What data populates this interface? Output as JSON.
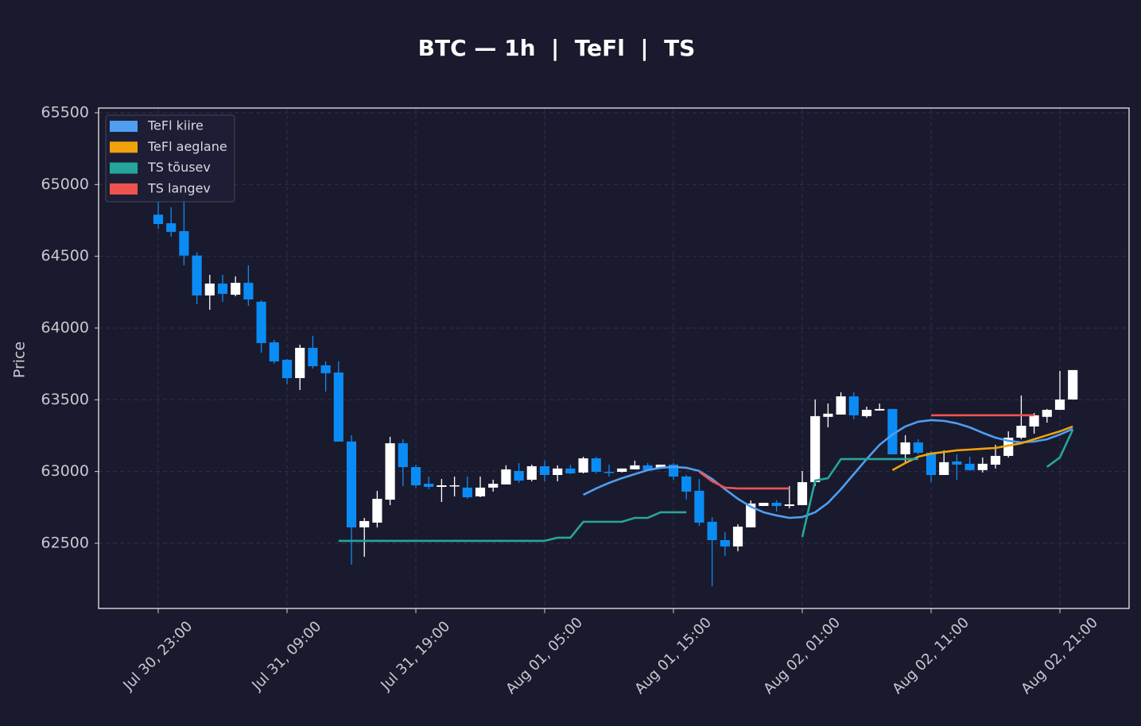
{
  "chart_data": {
    "type": "candlestick",
    "title": "BTC — 1h  |  TeFl  |  TS",
    "y_label": "Price",
    "categories": [
      "Jul 30, 23:00",
      null,
      null,
      null,
      null,
      null,
      null,
      null,
      null,
      null,
      "Jul 31, 09:00",
      null,
      null,
      null,
      null,
      null,
      null,
      null,
      null,
      null,
      "Jul 31, 19:00",
      null,
      null,
      null,
      null,
      null,
      null,
      null,
      null,
      null,
      "Aug 01, 05:00",
      null,
      null,
      null,
      null,
      null,
      null,
      null,
      null,
      null,
      "Aug 01, 15:00",
      null,
      null,
      null,
      null,
      null,
      null,
      null,
      null,
      null,
      "Aug 02, 01:00",
      null,
      null,
      null,
      null,
      null,
      null,
      null,
      null,
      null,
      "Aug 02, 11:00",
      null,
      null,
      null,
      null,
      null,
      null,
      null,
      null,
      null,
      "Aug 02, 21:00",
      null
    ],
    "open": [
      64790,
      64730,
      64675,
      64505,
      64227,
      64310,
      64232,
      64315,
      64183,
      63900,
      63779,
      63651,
      63862,
      63740,
      63690,
      63209,
      62611,
      62644,
      62804,
      63197,
      63031,
      62915,
      62893,
      62898,
      62888,
      62827,
      62888,
      62910,
      63004,
      62943,
      63037,
      62976,
      63021,
      62993,
      63092,
      62998,
      62998,
      63015,
      63043,
      63026,
      63048,
      62965,
      62866,
      62650,
      62522,
      62478,
      62611,
      62760,
      62782,
      62760,
      62766,
      62926,
      63381,
      63397,
      63524,
      63386,
      63425,
      63436,
      63120,
      63203,
      63131,
      62976,
      63070,
      63054,
      63010,
      63048,
      63109,
      63236,
      63314,
      63381,
      63430,
      63502
    ],
    "high": [
      64900,
      64841,
      64950,
      64526,
      64371,
      64371,
      64360,
      64437,
      64194,
      63917,
      63784,
      63884,
      63945,
      63768,
      63768,
      63253,
      62677,
      62865,
      63242,
      63225,
      63048,
      62965,
      62948,
      62965,
      62965,
      62965,
      62943,
      63043,
      63059,
      63048,
      63076,
      63043,
      63048,
      63103,
      63103,
      63048,
      63021,
      63076,
      63059,
      63048,
      63059,
      62976,
      62948,
      62683,
      62578,
      62633,
      62799,
      62782,
      62799,
      62899,
      63004,
      63502,
      63474,
      63552,
      63552,
      63452,
      63474,
      63436,
      63253,
      63225,
      63142,
      63148,
      63120,
      63103,
      63098,
      63186,
      63280,
      63530,
      63408,
      63436,
      63701,
      63707
    ],
    "low": [
      64692,
      64637,
      64437,
      64166,
      64127,
      64183,
      64221,
      64155,
      63828,
      63751,
      63607,
      63568,
      63718,
      63557,
      63209,
      62351,
      62406,
      62611,
      62766,
      62899,
      62888,
      62877,
      62788,
      62827,
      62810,
      62821,
      62860,
      62910,
      62921,
      62932,
      62932,
      62932,
      62982,
      62987,
      62987,
      62965,
      62993,
      63015,
      63004,
      63021,
      62943,
      62804,
      62622,
      62201,
      62412,
      62445,
      62611,
      62760,
      62722,
      62744,
      62766,
      62899,
      63308,
      63397,
      63364,
      63375,
      63425,
      63120,
      63059,
      63120,
      62926,
      62976,
      62943,
      63004,
      62993,
      63021,
      63098,
      63225,
      63264,
      63341,
      63430,
      63502
    ],
    "close": [
      64725,
      64670,
      64505,
      64227,
      64310,
      64238,
      64315,
      64199,
      63895,
      63767,
      63651,
      63862,
      63734,
      63685,
      63209,
      62611,
      62655,
      62810,
      63197,
      63031,
      62904,
      62893,
      62904,
      62904,
      62821,
      62888,
      62915,
      63015,
      62937,
      63037,
      62976,
      63021,
      62987,
      63092,
      62998,
      62993,
      63021,
      63043,
      63010,
      63048,
      62965,
      62860,
      62644,
      62522,
      62478,
      62616,
      62777,
      62782,
      62760,
      62771,
      62926,
      63386,
      63403,
      63524,
      63392,
      63430,
      63436,
      63120,
      63203,
      63131,
      62976,
      63065,
      63048,
      63010,
      63054,
      63109,
      63236,
      63319,
      63392,
      63430,
      63502,
      63707
    ],
    "up_color": "#ffffff",
    "down_color": "#0b8cf5",
    "series": [
      {
        "name": "TeFl kiire",
        "color": "#4f9ef0",
        "values": [
          null,
          null,
          null,
          null,
          null,
          null,
          null,
          null,
          null,
          null,
          null,
          null,
          null,
          null,
          null,
          null,
          null,
          null,
          null,
          null,
          null,
          null,
          null,
          null,
          null,
          null,
          null,
          null,
          null,
          null,
          null,
          null,
          null,
          62838,
          62882,
          62921,
          62954,
          62982,
          63010,
          63026,
          63032,
          63026,
          63004,
          62948,
          62877,
          62810,
          62755,
          62716,
          62694,
          62677,
          62683,
          62716,
          62782,
          62877,
          62982,
          63087,
          63186,
          63258,
          63314,
          63347,
          63358,
          63353,
          63336,
          63308,
          63270,
          63236,
          63214,
          63203,
          63209,
          63225,
          63258,
          63297
        ]
      },
      {
        "name": "TeFl aeglane",
        "color": "#f0a30a",
        "values": [
          null,
          null,
          null,
          null,
          null,
          null,
          null,
          null,
          null,
          null,
          null,
          null,
          null,
          null,
          null,
          null,
          null,
          null,
          null,
          null,
          null,
          null,
          null,
          null,
          null,
          null,
          null,
          null,
          null,
          null,
          null,
          null,
          null,
          null,
          null,
          null,
          null,
          null,
          null,
          null,
          null,
          null,
          null,
          null,
          null,
          null,
          null,
          null,
          null,
          null,
          null,
          null,
          null,
          null,
          null,
          null,
          null,
          63010,
          63059,
          63103,
          63125,
          63136,
          63148,
          63153,
          63159,
          63164,
          63181,
          63197,
          63225,
          63253,
          63280,
          63314
        ]
      },
      {
        "name": "TS tõusev",
        "color": "#26a69a",
        "values": [
          null,
          null,
          null,
          null,
          null,
          null,
          null,
          null,
          null,
          null,
          null,
          null,
          null,
          null,
          62517,
          62517,
          62517,
          62517,
          62517,
          62517,
          62517,
          62517,
          62517,
          62517,
          62517,
          62517,
          62517,
          62517,
          62517,
          62517,
          62517,
          62539,
          62539,
          62650,
          62650,
          62650,
          62650,
          62677,
          62677,
          62716,
          62716,
          62716,
          null,
          null,
          null,
          null,
          null,
          null,
          null,
          null,
          62544,
          62937,
          62954,
          63087,
          63087,
          63087,
          63087,
          63087,
          63087,
          63087,
          null,
          null,
          null,
          null,
          null,
          null,
          null,
          null,
          null,
          63032,
          63098,
          63292
        ]
      },
      {
        "name": "TS langev",
        "color": "#ef5350",
        "values": [
          null,
          null,
          null,
          null,
          null,
          null,
          null,
          null,
          null,
          null,
          null,
          null,
          null,
          null,
          null,
          null,
          null,
          null,
          null,
          null,
          null,
          null,
          null,
          null,
          null,
          null,
          null,
          null,
          null,
          null,
          null,
          null,
          null,
          null,
          null,
          null,
          null,
          null,
          null,
          null,
          null,
          null,
          62998,
          62932,
          62888,
          62882,
          62882,
          62882,
          62882,
          62882,
          null,
          null,
          null,
          null,
          null,
          null,
          null,
          null,
          null,
          null,
          63392,
          63392,
          63392,
          63392,
          63392,
          63392,
          63392,
          63392,
          63392,
          null,
          null,
          null
        ]
      }
    ],
    "xlim": [
      -4.63,
      75.37
    ],
    "ylim": [
      62046,
      65533
    ],
    "yticks": [
      62500,
      63000,
      63500,
      64000,
      64500,
      65000,
      65500
    ],
    "grid": true,
    "legend": "upper left"
  }
}
